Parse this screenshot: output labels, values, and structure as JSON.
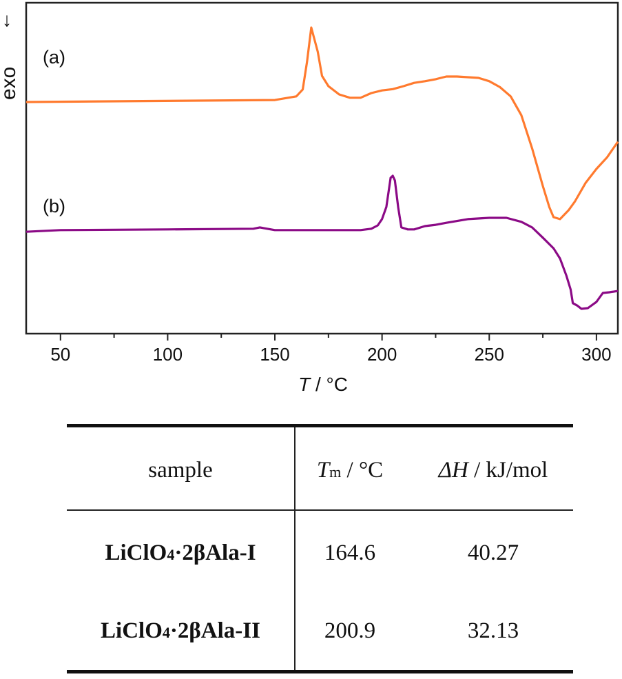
{
  "chart_data": {
    "type": "line",
    "title": "",
    "xlabel_italic": "T",
    "xlabel_unit": " / °C",
    "ylabel": "exo",
    "ylabel_arrow": "↓",
    "xlim": [
      34,
      310
    ],
    "ylim": [
      0,
      100
    ],
    "y_units": "arbitrary",
    "xticks_major": [
      50,
      100,
      150,
      200,
      250,
      300
    ],
    "xtick_labels": [
      "50",
      "100",
      "150",
      "200",
      "250",
      "300"
    ],
    "xticks_minor": [
      75,
      125,
      175,
      225,
      275
    ],
    "grid": false,
    "series": [
      {
        "name": "(a)",
        "color": "#ff7a2e",
        "x": [
          34,
          150,
          160,
          163,
          165,
          167,
          170,
          172,
          175,
          180,
          185,
          190,
          195,
          200,
          205,
          210,
          215,
          220,
          225,
          230,
          235,
          240,
          245,
          250,
          255,
          260,
          265,
          270,
          275,
          278,
          280,
          283,
          287,
          290,
          295,
          300,
          305,
          310
        ],
        "y": [
          70.0,
          70.6,
          71.7,
          73.8,
          82.1,
          92.5,
          85.2,
          77.9,
          74.8,
          72.3,
          71.3,
          71.3,
          72.7,
          73.5,
          73.9,
          74.8,
          75.8,
          76.3,
          76.9,
          77.7,
          77.7,
          77.5,
          77.3,
          76.3,
          74.5,
          71.7,
          66.0,
          56.0,
          44.6,
          38.3,
          35.2,
          34.6,
          37.3,
          40.0,
          45.6,
          49.8,
          53.3,
          58.0
        ]
      },
      {
        "name": "(b)",
        "color": "#8b0a86",
        "x": [
          34,
          50,
          100,
          140,
          143,
          150,
          190,
          195,
          198,
          200,
          202,
          204,
          205,
          206,
          207.5,
          209,
          212,
          215,
          220,
          225,
          230,
          240,
          250,
          258,
          265,
          270,
          275,
          280,
          283,
          286,
          288,
          289,
          291,
          293,
          296,
          300,
          303,
          306,
          310
        ],
        "y": [
          30.8,
          31.3,
          31.5,
          31.7,
          32.1,
          31.3,
          31.3,
          31.7,
          32.7,
          34.6,
          38.3,
          47.1,
          47.7,
          46.3,
          38.3,
          32.1,
          31.5,
          31.5,
          32.5,
          32.9,
          33.5,
          34.6,
          35.0,
          35.0,
          33.8,
          32.1,
          29.0,
          25.8,
          22.7,
          17.5,
          13.3,
          9.2,
          8.5,
          7.5,
          7.7,
          9.6,
          12.3,
          12.5,
          12.9
        ]
      }
    ]
  },
  "table": {
    "headers": {
      "sample": "sample",
      "tm_symbol": "T",
      "tm_sub": "m",
      "tm_unit": " / °C",
      "dh_symbol": "ΔH",
      "dh_unit": " / kJ/mol"
    },
    "rows": [
      {
        "sample_pre": "LiClO",
        "sample_sub": "4",
        "sample_post": "·2βAla-I",
        "tm": "164.6",
        "dh": "40.27"
      },
      {
        "sample_pre": "LiClO",
        "sample_sub": "4",
        "sample_post": "·2βAla-II",
        "tm": "200.9",
        "dh": "32.13"
      }
    ]
  }
}
